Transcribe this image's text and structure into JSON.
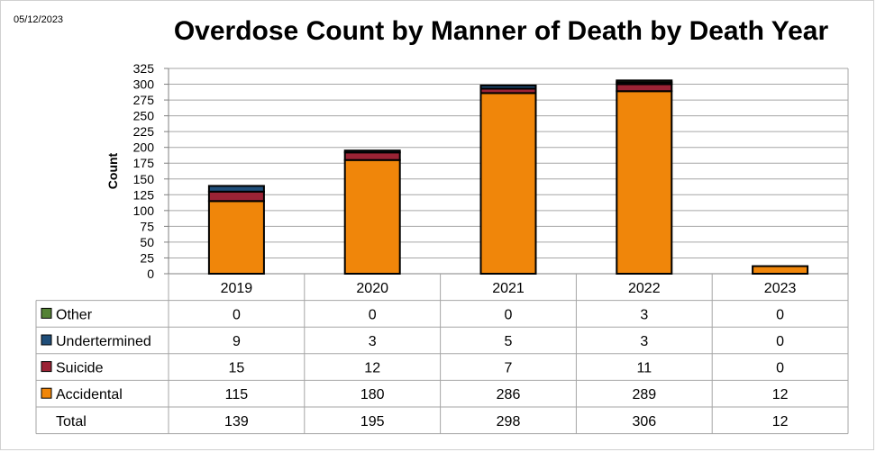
{
  "date": "05/12/2023",
  "chart_data": {
    "type": "bar",
    "stacked": true,
    "title": "Overdose Count by Manner of Death by Death Year",
    "ylabel": "Count",
    "xlabel": "",
    "ylim": [
      0,
      325
    ],
    "yticks": [
      0,
      25,
      50,
      75,
      100,
      125,
      150,
      175,
      200,
      225,
      250,
      275,
      300,
      325
    ],
    "grid": true,
    "categories": [
      "2019",
      "2020",
      "2021",
      "2022",
      "2023"
    ],
    "series": [
      {
        "name": "Other",
        "color": "#548235",
        "values": [
          0,
          0,
          0,
          3,
          0
        ]
      },
      {
        "name": "Undertermined",
        "color": "#1f4e79",
        "values": [
          9,
          3,
          5,
          3,
          0
        ]
      },
      {
        "name": "Suicide",
        "color": "#9b2335",
        "values": [
          15,
          12,
          7,
          11,
          0
        ]
      },
      {
        "name": "Accidental",
        "color": "#f0860a",
        "values": [
          115,
          180,
          286,
          289,
          12
        ]
      }
    ],
    "stack_order_bottom_to_top": [
      "Accidental",
      "Suicide",
      "Undertermined",
      "Other"
    ],
    "total_label": "Total",
    "totals": [
      139,
      195,
      298,
      306,
      12
    ]
  }
}
